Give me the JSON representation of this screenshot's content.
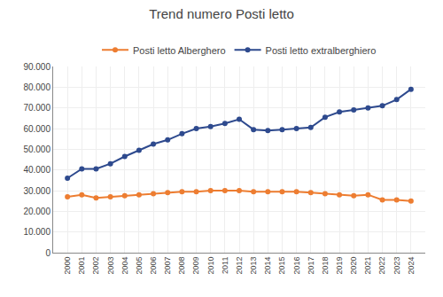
{
  "chart_data": {
    "type": "line",
    "title": "Trend numero Posti letto",
    "x": [
      2000,
      2001,
      2002,
      2003,
      2004,
      2005,
      2006,
      2007,
      2008,
      2009,
      2010,
      2011,
      2012,
      2013,
      2014,
      2015,
      2016,
      2017,
      2018,
      2019,
      2020,
      2021,
      2022,
      2023,
      2024
    ],
    "series": [
      {
        "name": "Posti letto Alberghero",
        "color": "#ED7D31",
        "marker": "circle",
        "values": [
          27000,
          28000,
          26500,
          27000,
          27500,
          28000,
          28500,
          29000,
          29500,
          29500,
          30000,
          30000,
          30000,
          29500,
          29500,
          29500,
          29500,
          29000,
          28500,
          28000,
          27500,
          28000,
          25500,
          25500,
          25000
        ]
      },
      {
        "name": "Posti letto extralberghiero",
        "color": "#2E4A8E",
        "marker": "circle",
        "values": [
          36000,
          40500,
          40500,
          43000,
          46500,
          49500,
          52500,
          54500,
          57500,
          60000,
          61000,
          62500,
          64500,
          59500,
          59000,
          59500,
          60000,
          60500,
          65500,
          68000,
          69000,
          70000,
          71000,
          74000,
          79000
        ]
      }
    ],
    "xlim": [
      1999,
      2025
    ],
    "xticks": [
      2000,
      2001,
      2002,
      2003,
      2004,
      2005,
      2006,
      2007,
      2008,
      2009,
      2010,
      2011,
      2012,
      2013,
      2014,
      2015,
      2016,
      2017,
      2018,
      2019,
      2020,
      2021,
      2022,
      2023,
      2024
    ],
    "ylim": [
      0,
      90000
    ],
    "yticks": [
      0,
      {
        "value": 10000,
        "label": "10.000"
      },
      {
        "value": 20000,
        "label": "20.000"
      },
      {
        "value": 30000,
        "label": "30.000"
      },
      {
        "value": 40000,
        "label": "40.000"
      },
      {
        "value": 50000,
        "label": "50.000"
      },
      {
        "value": 60000,
        "label": "60.000"
      },
      {
        "value": 70000,
        "label": "70.000"
      },
      {
        "value": 80000,
        "label": "80.000"
      },
      {
        "value": 90000,
        "label": "90.000"
      }
    ],
    "grid": true,
    "legend": "top"
  }
}
